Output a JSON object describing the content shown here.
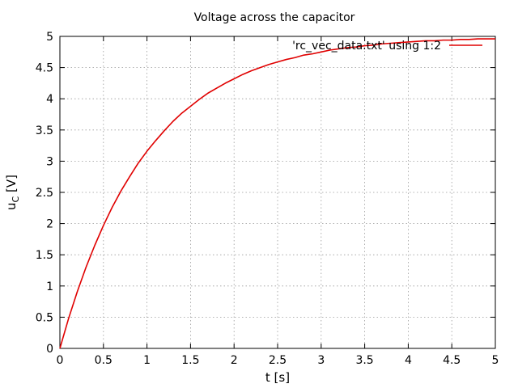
{
  "chart_data": {
    "type": "line",
    "title": "Voltage across the capacitor",
    "xlabel": "t [s]",
    "ylabel_main": "u",
    "ylabel_sub": "C",
    "ylabel_rest": " [V]",
    "xlim": [
      0,
      5
    ],
    "ylim": [
      0,
      5
    ],
    "xticks": [
      0,
      0.5,
      1,
      1.5,
      2,
      2.5,
      3,
      3.5,
      4,
      4.5,
      5
    ],
    "xtick_labels": [
      "0",
      "0.5",
      "1",
      "1.5",
      "2",
      "2.5",
      "3",
      "3.5",
      "4",
      "4.5",
      "5"
    ],
    "yticks": [
      0,
      0.5,
      1,
      1.5,
      2,
      2.5,
      3,
      3.5,
      4,
      4.5,
      5
    ],
    "ytick_labels": [
      "0",
      "0.5",
      "1",
      "1.5",
      "2",
      "2.5",
      "3",
      "3.5",
      "4",
      "4.5",
      "5"
    ],
    "grid": true,
    "legend_position": "top-right",
    "series": [
      {
        "name": "'rc_vec_data.txt' using 1:2",
        "color": "#e00000",
        "x": [
          0,
          0.1,
          0.2,
          0.3,
          0.4,
          0.5,
          0.6,
          0.7,
          0.8,
          0.9,
          1.0,
          1.1,
          1.2,
          1.3,
          1.4,
          1.5,
          1.6,
          1.7,
          1.8,
          1.9,
          2.0,
          2.1,
          2.2,
          2.3,
          2.4,
          2.5,
          2.6,
          2.7,
          2.8,
          2.9,
          3.0,
          3.1,
          3.2,
          3.3,
          3.4,
          3.5,
          3.6,
          3.7,
          3.8,
          3.9,
          4.0,
          4.1,
          4.2,
          4.3,
          4.4,
          4.5,
          4.6,
          4.7,
          4.8,
          4.9,
          5.0
        ],
        "values": [
          0,
          0.48,
          0.91,
          1.3,
          1.65,
          1.97,
          2.26,
          2.52,
          2.75,
          2.97,
          3.16,
          3.33,
          3.49,
          3.64,
          3.77,
          3.88,
          3.99,
          4.09,
          4.17,
          4.25,
          4.32,
          4.39,
          4.45,
          4.5,
          4.55,
          4.59,
          4.63,
          4.66,
          4.7,
          4.72,
          4.75,
          4.78,
          4.8,
          4.82,
          4.83,
          4.85,
          4.86,
          4.88,
          4.89,
          4.9,
          4.91,
          4.92,
          4.93,
          4.93,
          4.94,
          4.94,
          4.95,
          4.95,
          4.96,
          4.96,
          4.96
        ]
      }
    ]
  }
}
